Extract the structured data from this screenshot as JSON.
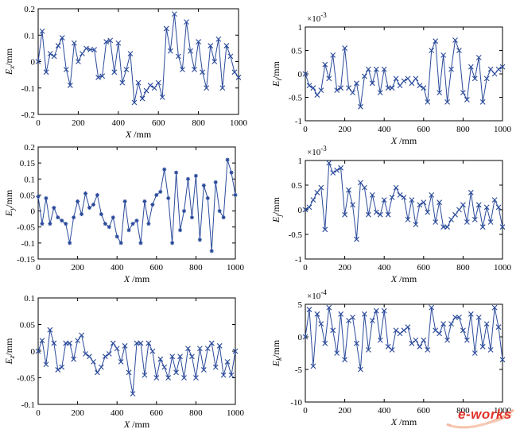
{
  "chart_data": [
    {
      "type": "line",
      "id": "ex",
      "ylabel_main": "E",
      "ylabel_sub": "x",
      "ylabel_unit": "/mm",
      "xlabel_main": "X",
      "xlabel_unit": "/mm",
      "exponent": "",
      "marker": "x",
      "xlim": [
        0,
        1000
      ],
      "ylim": [
        -0.2,
        0.2
      ],
      "xticks": [
        0,
        200,
        400,
        600,
        800,
        1000
      ],
      "yticks": [
        -0.2,
        -0.1,
        0,
        0.1,
        0.2
      ],
      "ytick_labels": [
        "-0.2",
        "-0.1",
        "0",
        "0.1",
        "0.2"
      ],
      "series": [
        {
          "x": [
            0,
            20,
            40,
            60,
            80,
            100,
            120,
            140,
            160,
            180,
            200,
            220,
            240,
            260,
            280,
            300,
            320,
            340,
            360,
            380,
            400,
            420,
            440,
            460,
            480,
            500,
            520,
            540,
            560,
            580,
            600,
            620,
            640,
            660,
            680,
            700,
            720,
            740,
            760,
            780,
            800,
            820,
            840,
            860,
            880,
            900,
            920,
            940,
            960,
            980,
            1000
          ],
          "y": [
            0,
            0.115,
            -0.04,
            0.03,
            0.02,
            0.06,
            0.09,
            -0.03,
            -0.09,
            0.07,
            0,
            0.03,
            0.05,
            0.045,
            0.045,
            -0.06,
            -0.055,
            0.075,
            0.08,
            -0.04,
            0.07,
            -0.08,
            -0.03,
            0.03,
            -0.155,
            -0.08,
            -0.14,
            -0.11,
            -0.09,
            -0.1,
            -0.08,
            -0.135,
            0.125,
            0.04,
            0.18,
            0.02,
            -0.03,
            0.15,
            0.04,
            -0.03,
            0.075,
            -0.04,
            -0.1,
            0.06,
            0,
            0.085,
            -0.1,
            0.06,
            0.02,
            -0.04,
            -0.06
          ]
        }
      ]
    },
    {
      "type": "line",
      "id": "ei",
      "ylabel_main": "E",
      "ylabel_sub": "i",
      "ylabel_unit": "/mm",
      "xlabel_main": "X",
      "xlabel_unit": "/mm",
      "exponent": "-3",
      "marker": "x",
      "xlim": [
        0,
        1000
      ],
      "ylim": [
        -1,
        1
      ],
      "xticks": [
        0,
        200,
        400,
        600,
        800,
        1000
      ],
      "yticks": [
        -1,
        -0.5,
        0,
        0.5,
        1
      ],
      "ytick_labels": [
        "-1",
        "-0.5",
        "0",
        "0.5",
        "1"
      ],
      "series": [
        {
          "x": [
            0,
            20,
            40,
            60,
            80,
            100,
            120,
            140,
            160,
            180,
            200,
            220,
            240,
            260,
            280,
            300,
            320,
            340,
            360,
            380,
            400,
            420,
            440,
            460,
            480,
            500,
            520,
            540,
            560,
            580,
            600,
            620,
            640,
            660,
            680,
            700,
            720,
            740,
            760,
            780,
            800,
            820,
            840,
            860,
            880,
            900,
            920,
            940,
            960,
            980,
            1000
          ],
          "y": [
            0,
            -0.25,
            -0.3,
            -0.45,
            -0.35,
            0.2,
            -0.1,
            0.4,
            -0.35,
            -0.3,
            0.55,
            -0.3,
            -0.4,
            -0.2,
            -0.7,
            -0.05,
            0.1,
            -0.2,
            0.1,
            -0.4,
            0.1,
            -0.3,
            -0.3,
            -0.1,
            -0.25,
            -0.15,
            -0.1,
            -0.2,
            -0.1,
            -0.25,
            -0.3,
            -0.6,
            0.5,
            0.7,
            -0.4,
            0.4,
            -0.6,
            0.1,
            0.72,
            0.5,
            -0.4,
            -0.55,
            0.15,
            -0.1,
            0.35,
            -0.6,
            -0.1,
            0.1,
            0,
            0.1,
            0.15
          ]
        }
      ]
    },
    {
      "type": "line",
      "id": "ey",
      "ylabel_main": "E",
      "ylabel_sub": "y",
      "ylabel_unit": "/mm",
      "xlabel_main": "X",
      "xlabel_unit": "/mm",
      "exponent": "",
      "marker": "*",
      "xlim": [
        0,
        1000
      ],
      "ylim": [
        -0.15,
        0.2
      ],
      "xticks": [
        0,
        200,
        400,
        600,
        800,
        1000
      ],
      "yticks": [
        -0.15,
        -0.1,
        -0.05,
        0,
        0.05,
        0.1,
        0.15,
        0.2
      ],
      "ytick_labels": [
        "-0.15",
        "-0.1",
        "-0.05",
        "0",
        "0.05",
        "0.1",
        "0.15",
        "0.2"
      ],
      "series": [
        {
          "x": [
            0,
            20,
            40,
            60,
            80,
            100,
            120,
            140,
            160,
            180,
            200,
            220,
            240,
            260,
            280,
            300,
            320,
            340,
            360,
            380,
            400,
            420,
            440,
            460,
            480,
            500,
            520,
            540,
            560,
            580,
            600,
            620,
            640,
            660,
            680,
            700,
            720,
            740,
            760,
            780,
            800,
            820,
            840,
            860,
            880,
            900,
            920,
            940,
            960,
            980,
            1000
          ],
          "y": [
            0.045,
            -0.04,
            0.04,
            -0.04,
            0.01,
            -0.02,
            -0.03,
            -0.04,
            -0.1,
            -0.02,
            0.03,
            -0.01,
            0.055,
            0.01,
            0.02,
            0.05,
            -0.01,
            -0.04,
            -0.05,
            -0.02,
            -0.08,
            -0.1,
            0.03,
            -0.06,
            -0.04,
            -0.03,
            -0.1,
            0.03,
            -0.04,
            0.02,
            0.05,
            0.06,
            0.13,
            0.04,
            -0.1,
            0.12,
            -0.06,
            0,
            0.1,
            -0.02,
            0.11,
            -0.09,
            0.08,
            0.04,
            -0.125,
            0.09,
            0,
            -0.02,
            0.16,
            0.12,
            0.05
          ]
        }
      ]
    },
    {
      "type": "line",
      "id": "ej",
      "ylabel_main": "E",
      "ylabel_sub": "j",
      "ylabel_unit": "/mm",
      "xlabel_main": "X",
      "xlabel_unit": "/mm",
      "exponent": "-3",
      "marker": "x",
      "xlim": [
        0,
        1000
      ],
      "ylim": [
        -1,
        1
      ],
      "xticks": [
        0,
        200,
        400,
        600,
        800,
        1000
      ],
      "yticks": [
        -1,
        -0.5,
        0,
        0.5,
        1
      ],
      "ytick_labels": [
        "-1",
        "-0.5",
        "0",
        "0.5",
        "1"
      ],
      "series": [
        {
          "x": [
            0,
            20,
            40,
            60,
            80,
            100,
            120,
            140,
            160,
            180,
            200,
            220,
            240,
            260,
            280,
            300,
            320,
            340,
            360,
            380,
            400,
            420,
            440,
            460,
            480,
            500,
            520,
            540,
            560,
            580,
            600,
            620,
            640,
            660,
            680,
            700,
            720,
            740,
            760,
            780,
            800,
            820,
            840,
            860,
            880,
            900,
            920,
            940,
            960,
            980,
            1000
          ],
          "y": [
            0,
            0.05,
            0.2,
            0.35,
            0.45,
            -0.4,
            0.95,
            0.75,
            0.8,
            0.85,
            -0.1,
            0.4,
            0.1,
            -0.6,
            0.55,
            0.45,
            -0.1,
            0.3,
            -0.05,
            -0.1,
            0.2,
            -0.1,
            0.25,
            0.45,
            0.3,
            0.25,
            -0.2,
            0.2,
            -0.3,
            0.1,
            0.15,
            -0.05,
            0.3,
            -0.25,
            0.15,
            -0.35,
            -0.35,
            -0.2,
            -0.1,
            0,
            0.1,
            -0.25,
            0.35,
            -0.2,
            0.1,
            -0.35,
            0.05,
            -0.25,
            0.2,
            0.05,
            -0.35
          ]
        }
      ]
    },
    {
      "type": "line",
      "id": "ez",
      "ylabel_main": "E",
      "ylabel_sub": "z",
      "ylabel_unit": "/mm",
      "xlabel_main": "X",
      "xlabel_unit": "/mm",
      "exponent": "",
      "marker": "x",
      "xlim": [
        0,
        1000
      ],
      "ylim": [
        -0.1,
        0.1
      ],
      "xticks": [
        0,
        200,
        400,
        600,
        800,
        1000
      ],
      "yticks": [
        -0.1,
        -0.05,
        0,
        0.05,
        0.1
      ],
      "ytick_labels": [
        "-0.1",
        "-0.05",
        "0",
        "0.05",
        "0.1"
      ],
      "series": [
        {
          "x": [
            0,
            20,
            40,
            60,
            80,
            100,
            120,
            140,
            160,
            180,
            200,
            220,
            240,
            260,
            280,
            300,
            320,
            340,
            360,
            380,
            400,
            420,
            440,
            460,
            480,
            500,
            520,
            540,
            560,
            580,
            600,
            620,
            640,
            660,
            680,
            700,
            720,
            740,
            760,
            780,
            800,
            820,
            840,
            860,
            880,
            900,
            920,
            940,
            960,
            980,
            1000
          ],
          "y": [
            0,
            0.02,
            -0.025,
            0.04,
            0.015,
            -0.035,
            -0.03,
            0.015,
            0.015,
            -0.015,
            0.02,
            0.03,
            -0.005,
            -0.01,
            -0.02,
            -0.04,
            -0.03,
            -0.01,
            -0.005,
            0.015,
            0.005,
            -0.02,
            0.01,
            -0.04,
            -0.08,
            0.015,
            0.015,
            -0.045,
            0.015,
            0,
            -0.05,
            -0.015,
            -0.03,
            -0.05,
            -0.01,
            -0.04,
            -0.01,
            -0.05,
            0.005,
            -0.01,
            -0.05,
            0.005,
            -0.035,
            0.005,
            0.015,
            -0.03,
            0.01,
            -0.045,
            -0.02,
            -0.045,
            0
          ]
        }
      ]
    },
    {
      "type": "line",
      "id": "ek",
      "ylabel_main": "E",
      "ylabel_sub": "k",
      "ylabel_unit": "/mm",
      "xlabel_main": "X",
      "xlabel_unit": "/mm",
      "exponent": "-4",
      "marker": "x",
      "xlim": [
        0,
        1000
      ],
      "ylim": [
        -10,
        5
      ],
      "xticks": [
        0,
        200,
        400,
        600,
        800,
        1000
      ],
      "yticks": [
        -10,
        -5,
        0,
        5
      ],
      "ytick_labels": [
        "-10",
        "-5",
        "0",
        "5"
      ],
      "series": [
        {
          "x": [
            0,
            20,
            40,
            60,
            80,
            100,
            120,
            140,
            160,
            180,
            200,
            220,
            240,
            260,
            280,
            300,
            320,
            340,
            360,
            380,
            400,
            420,
            440,
            460,
            480,
            500,
            520,
            540,
            560,
            580,
            600,
            620,
            640,
            660,
            680,
            700,
            720,
            740,
            760,
            780,
            800,
            820,
            840,
            860,
            880,
            900,
            920,
            940,
            960,
            980,
            1000
          ],
          "y": [
            0,
            4.2,
            -4.5,
            3.5,
            2,
            -1,
            4.5,
            1,
            -2.5,
            3.5,
            -3.5,
            2.5,
            3,
            -1,
            -5,
            3.5,
            -2,
            2.5,
            4,
            -0.5,
            4,
            -1.5,
            -2,
            1,
            0.5,
            1,
            1.5,
            -1,
            -0.5,
            -1.5,
            -0.5,
            -2,
            4.5,
            1,
            0.5,
            2,
            -0.5,
            2,
            3,
            3,
            1,
            -0.5,
            3.5,
            -2.5,
            3,
            -1.5,
            2,
            -2,
            4.5,
            1.5,
            -3.5
          ]
        }
      ]
    }
  ],
  "colors": {
    "line": "#2a4a9a",
    "marker": "#2a4a9a",
    "axis": "#000000"
  },
  "watermark": {
    "text": "e-works"
  }
}
